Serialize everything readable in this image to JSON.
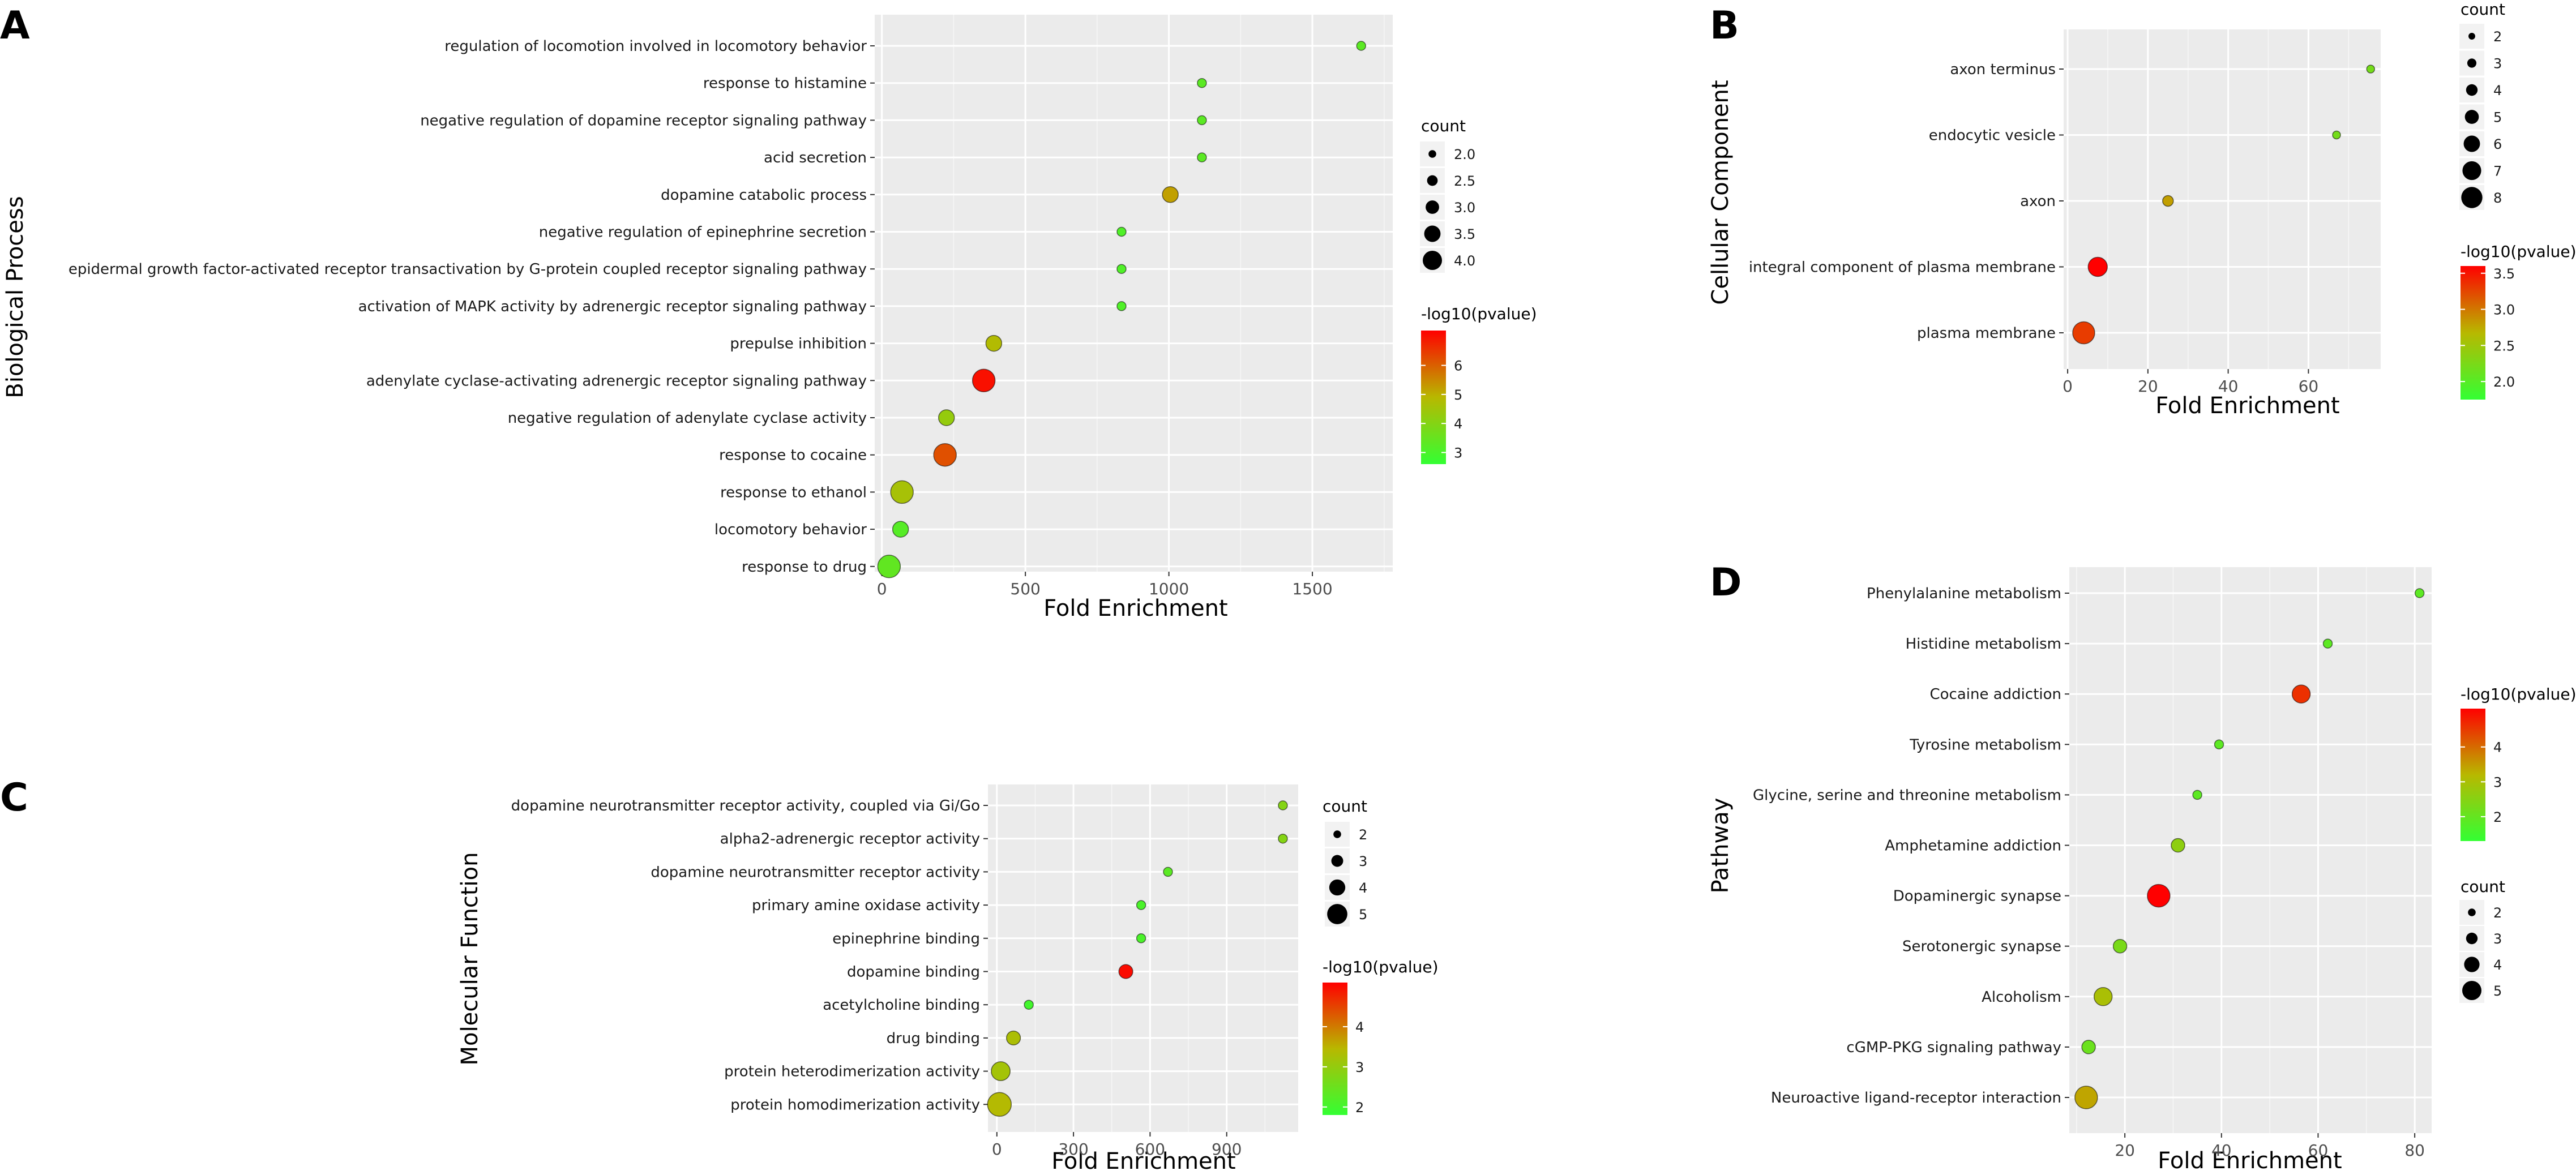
{
  "chart_data": [
    {
      "panel": "A",
      "type": "scatter",
      "subtype": "bubble",
      "xlabel": "Fold Enrichment",
      "ylabel": "Biological Process",
      "xlim": [
        -25,
        1780
      ],
      "xticks": [
        0,
        500,
        1000,
        1500
      ],
      "xtick_labels": [
        "0",
        "500",
        "1000",
        "1500"
      ],
      "categories": [
        "regulation of locomotion involved in locomotory behavior",
        "response to histamine",
        "negative regulation of dopamine receptor signaling pathway",
        "acid secretion",
        "dopamine catabolic process",
        "negative regulation of epinephrine secretion",
        "epidermal growth factor-activated receptor transactivation by G-protein coupled receptor signaling pathway",
        "activation of MAPK activity by adrenergic receptor signaling pathway",
        "prepulse inhibition",
        "adenylate cyclase-activating adrenergic receptor signaling pathway",
        "negative regulation of adenylate cyclase activity",
        "response to cocaine",
        "response to ethanol",
        "locomotory behavior",
        "response to drug"
      ],
      "x": [
        1670,
        1115,
        1115,
        1115,
        1005,
        835,
        835,
        835,
        390,
        355,
        225,
        220,
        70,
        65,
        25
      ],
      "count": [
        2,
        2,
        2,
        2,
        3,
        2,
        2,
        2,
        3,
        4,
        3,
        4,
        4,
        3,
        4
      ],
      "neglog10p": [
        3.3,
        3.3,
        3.3,
        3.3,
        5.2,
        3.1,
        3.1,
        3.1,
        4.8,
        7.0,
        4.3,
        6.2,
        4.6,
        3.2,
        3.4
      ],
      "size_legend": {
        "title": "count",
        "values": [
          2.0,
          2.5,
          3.0,
          3.5,
          4.0
        ],
        "labels": [
          "2.0",
          "2.5",
          "3.0",
          "3.5",
          "4.0"
        ]
      },
      "color_legend": {
        "title": "-log10(pvalue)",
        "min": 2.6,
        "max": 7.2,
        "ticks": [
          3,
          4,
          5,
          6
        ],
        "labels": [
          "3",
          "4",
          "5",
          "6"
        ]
      }
    },
    {
      "panel": "B",
      "type": "scatter",
      "subtype": "bubble",
      "xlabel": "Fold Enrichment",
      "ylabel": "Cellular Component",
      "xlim": [
        -1,
        78
      ],
      "xticks": [
        0,
        20,
        40,
        60
      ],
      "xtick_labels": [
        "0",
        "20",
        "40",
        "60"
      ],
      "categories": [
        "axon terminus",
        "endocytic vesicle",
        "axon",
        "integral component of plasma membrane",
        "plasma membrane"
      ],
      "x": [
        75.5,
        67,
        25,
        7.5,
        4
      ],
      "count": [
        2,
        2,
        3,
        6,
        7
      ],
      "neglog10p": [
        2.2,
        2.2,
        2.8,
        3.6,
        3.3
      ],
      "size_legend": {
        "title": "count",
        "values": [
          2,
          3,
          4,
          5,
          6,
          7,
          8
        ],
        "labels": [
          "2",
          "3",
          "4",
          "5",
          "6",
          "7",
          "8"
        ]
      },
      "color_legend": {
        "title": "-log10(pvalue)",
        "min": 1.75,
        "max": 3.6,
        "ticks": [
          2.0,
          2.5,
          3.0,
          3.5
        ],
        "labels": [
          "2.0",
          "2.5",
          "3.0",
          "3.5"
        ]
      }
    },
    {
      "panel": "C",
      "type": "scatter",
      "subtype": "bubble",
      "xlabel": "Fold Enrichment",
      "ylabel": "Molecular Function",
      "xlim": [
        -35,
        1180
      ],
      "xticks": [
        0,
        300,
        600,
        900
      ],
      "xtick_labels": [
        "0",
        "300",
        "600",
        "900"
      ],
      "categories": [
        "dopamine neurotransmitter receptor activity, coupled via Gi/Go",
        "alpha2-adrenergic receptor activity",
        "dopamine neurotransmitter receptor activity",
        "primary amine oxidase activity",
        "epinephrine binding",
        "dopamine binding",
        "acetylcholine binding",
        "drug binding",
        "protein heterodimerization activity",
        "protein homodimerization activity"
      ],
      "x": [
        1120,
        1120,
        670,
        565,
        565,
        505,
        125,
        65,
        15,
        10
      ],
      "count": [
        2,
        2,
        2,
        2,
        2,
        3,
        2,
        3,
        4,
        5
      ],
      "neglog10p": [
        2.8,
        2.8,
        2.3,
        2.1,
        2.1,
        5.0,
        2.0,
        3.3,
        3.2,
        3.4
      ],
      "size_legend": {
        "title": "count",
        "values": [
          2,
          3,
          4,
          5
        ],
        "labels": [
          "2",
          "3",
          "4",
          "5"
        ]
      },
      "color_legend": {
        "title": "-log10(pvalue)",
        "min": 1.8,
        "max": 5.1,
        "ticks": [
          2,
          3,
          4
        ],
        "labels": [
          "2",
          "3",
          "4"
        ]
      }
    },
    {
      "panel": "D",
      "type": "scatter",
      "subtype": "bubble",
      "xlabel": "Fold Enrichment",
      "ylabel": "Pathway",
      "xlim": [
        8.5,
        83.5
      ],
      "xticks": [
        20,
        40,
        60,
        80
      ],
      "xtick_labels": [
        "20",
        "40",
        "60",
        "80"
      ],
      "categories": [
        "Phenylalanine metabolism",
        "Histidine metabolism",
        "Cocaine addiction",
        "Tyrosine metabolism",
        "Glycine, serine and threonine metabolism",
        "Amphetamine addiction",
        "Dopaminergic synapse",
        "Serotonergic synapse",
        "Alcoholism",
        "cGMP-PKG signaling pathway",
        "Neuroactive ligand-receptor interaction"
      ],
      "x": [
        81,
        62,
        56.5,
        39.5,
        35,
        31,
        27,
        19,
        15.5,
        12.5,
        12
      ],
      "count": [
        2,
        2,
        4,
        2,
        2,
        3,
        5,
        3,
        4,
        3,
        5
      ],
      "neglog10p": [
        1.9,
        1.9,
        4.6,
        1.9,
        1.9,
        2.6,
        5.1,
        2.3,
        3.0,
        2.1,
        3.4
      ],
      "size_legend": {
        "title": "count",
        "values": [
          2,
          3,
          4,
          5
        ],
        "labels": [
          "2",
          "3",
          "4",
          "5"
        ]
      },
      "color_legend": {
        "title": "-log10(pvalue)",
        "min": 1.3,
        "max": 5.1,
        "ticks": [
          2,
          3,
          4
        ],
        "labels": [
          "2",
          "3",
          "4"
        ]
      }
    }
  ],
  "panel_labels": [
    "A",
    "B",
    "C",
    "D"
  ],
  "colors": {
    "low": "#33ff33",
    "mid": "#b8b800",
    "high": "#ff0000",
    "panel_bg": "#ebebeb",
    "grid": "#ffffff",
    "point_edge": "#000000"
  }
}
